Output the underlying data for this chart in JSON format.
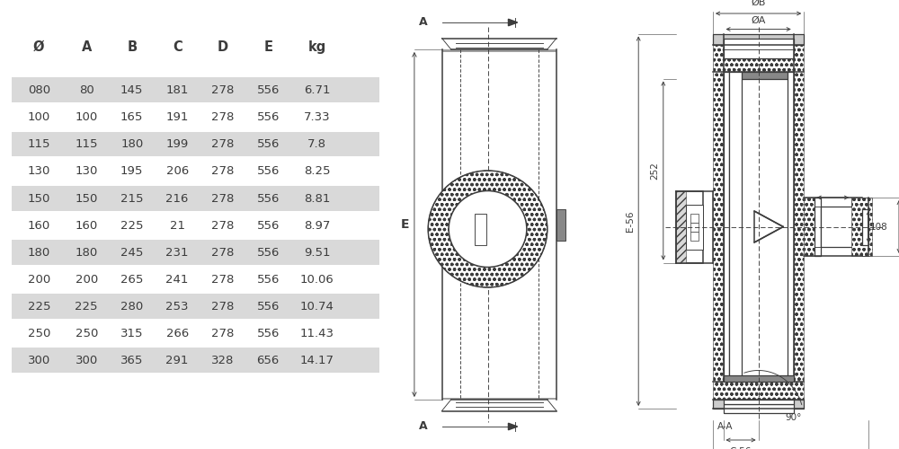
{
  "table": {
    "headers": [
      "Ø",
      "A",
      "B",
      "C",
      "D",
      "E",
      "kg"
    ],
    "rows": [
      [
        "080",
        "80",
        "145",
        "181",
        "278",
        "556",
        "6.71"
      ],
      [
        "100",
        "100",
        "165",
        "191",
        "278",
        "556",
        "7.33"
      ],
      [
        "115",
        "115",
        "180",
        "199",
        "278",
        "556",
        "7.8"
      ],
      [
        "130",
        "130",
        "195",
        "206",
        "278",
        "556",
        "8.25"
      ],
      [
        "150",
        "150",
        "215",
        "216",
        "278",
        "556",
        "8.81"
      ],
      [
        "160",
        "160",
        "225",
        "21",
        "278",
        "556",
        "8.97"
      ],
      [
        "180",
        "180",
        "245",
        "231",
        "278",
        "556",
        "9.51"
      ],
      [
        "200",
        "200",
        "265",
        "241",
        "278",
        "556",
        "10.06"
      ],
      [
        "225",
        "225",
        "280",
        "253",
        "278",
        "556",
        "10.74"
      ],
      [
        "250",
        "250",
        "315",
        "266",
        "278",
        "556",
        "11.43"
      ],
      [
        "300",
        "300",
        "365",
        "291",
        "328",
        "656",
        "14.17"
      ]
    ],
    "shaded_rows": [
      0,
      2,
      4,
      6,
      8,
      10
    ],
    "row_bg_shaded": "#d9d9d9",
    "row_bg_plain": "#ffffff",
    "text_color": "#3c3c3c",
    "font_size": 9.5
  },
  "bg_color": "#ffffff",
  "line_color": "#3c3c3c"
}
